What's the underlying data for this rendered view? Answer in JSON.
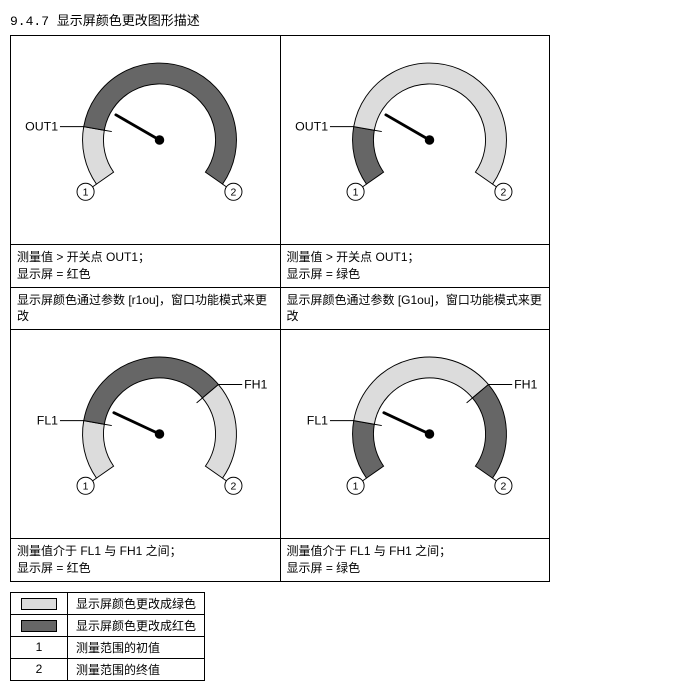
{
  "heading": "9.4.7 显示屏颜色更改图形描述",
  "colors": {
    "light": "#dcdcdc",
    "dark": "#666666",
    "stroke": "#000000",
    "bg": "#ffffff"
  },
  "gauges": {
    "top_left": {
      "out_label": "OUT1",
      "marker1": "1",
      "marker2": "2",
      "arc_light_start": 215,
      "arc_light_end": 170,
      "arc_dark_start": 170,
      "arc_dark_end": -35,
      "needle_angle": 150
    },
    "top_right": {
      "out_label": "OUT1",
      "marker1": "1",
      "marker2": "2",
      "arc_dark_start": 215,
      "arc_dark_end": 170,
      "arc_light_start": 170,
      "arc_light_end": -35,
      "needle_angle": 150
    },
    "bot_left": {
      "label_left": "FL1",
      "label_right": "FH1",
      "marker1": "1",
      "marker2": "2",
      "arc_light1_start": 215,
      "arc_light1_end": 170,
      "arc_dark_start": 170,
      "arc_dark_end": 40,
      "arc_light2_start": 40,
      "arc_light2_end": -35,
      "needle_angle": 155
    },
    "bot_right": {
      "label_left": "FL1",
      "label_right": "FH1",
      "marker1": "1",
      "marker2": "2",
      "arc_dark1_start": 215,
      "arc_dark1_end": 170,
      "arc_light_start": 170,
      "arc_light_end": 40,
      "arc_dark2_start": 40,
      "arc_dark2_end": -35,
      "needle_angle": 155
    }
  },
  "captions": {
    "top_left_l1": "测量值 > 开关点 OUT1；",
    "top_left_l2": "显示屏 = 红色",
    "top_right_l1": "测量值 > 开关点 OUT1；",
    "top_right_l2": "显示屏 = 绿色",
    "mid_left_l1": "显示屏颜色通过参数 [r1ou]，窗口功能模式来更改",
    "mid_right_l1": "显示屏颜色通过参数 [G1ou]，窗口功能模式来更改",
    "bot_left_l1": "测量值介于 FL1 与 FH1 之间；",
    "bot_left_l2": "显示屏 = 红色",
    "bot_right_l1": "测量值介于 FL1 与 FH1 之间；",
    "bot_right_l2": "显示屏 = 绿色"
  },
  "legend": {
    "row1_text": "显示屏颜色更改成绿色",
    "row2_text": "显示屏颜色更改成红色",
    "row3_key": "1",
    "row3_text": "测量范围的初值",
    "row4_key": "2",
    "row4_text": "测量范围的终值"
  }
}
